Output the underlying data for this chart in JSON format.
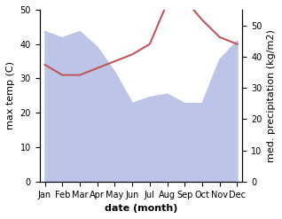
{
  "months": [
    "Jan",
    "Feb",
    "Mar",
    "Apr",
    "May",
    "Jun",
    "Jul",
    "Aug",
    "Sep",
    "Oct",
    "Nov",
    "Dec"
  ],
  "month_indices": [
    0,
    1,
    2,
    3,
    4,
    5,
    6,
    7,
    8,
    9,
    10,
    11
  ],
  "max_temp": [
    34,
    31,
    31,
    33,
    35,
    37,
    40,
    52,
    53,
    47,
    42,
    40
  ],
  "precipitation": [
    48,
    46,
    48,
    43,
    35,
    25,
    27,
    28,
    25,
    25,
    39,
    45
  ],
  "temp_color": "#c0565a",
  "precip_fill_color": "#bcc4e8",
  "ylim_temp": [
    0,
    50
  ],
  "ylim_precip": [
    0,
    55
  ],
  "ylabel_left": "max temp (C)",
  "ylabel_right": "med. precipitation (kg/m2)",
  "xlabel": "date (month)",
  "label_fontsize": 8,
  "tick_fontsize": 7,
  "figsize": [
    3.18,
    2.47
  ],
  "dpi": 100
}
